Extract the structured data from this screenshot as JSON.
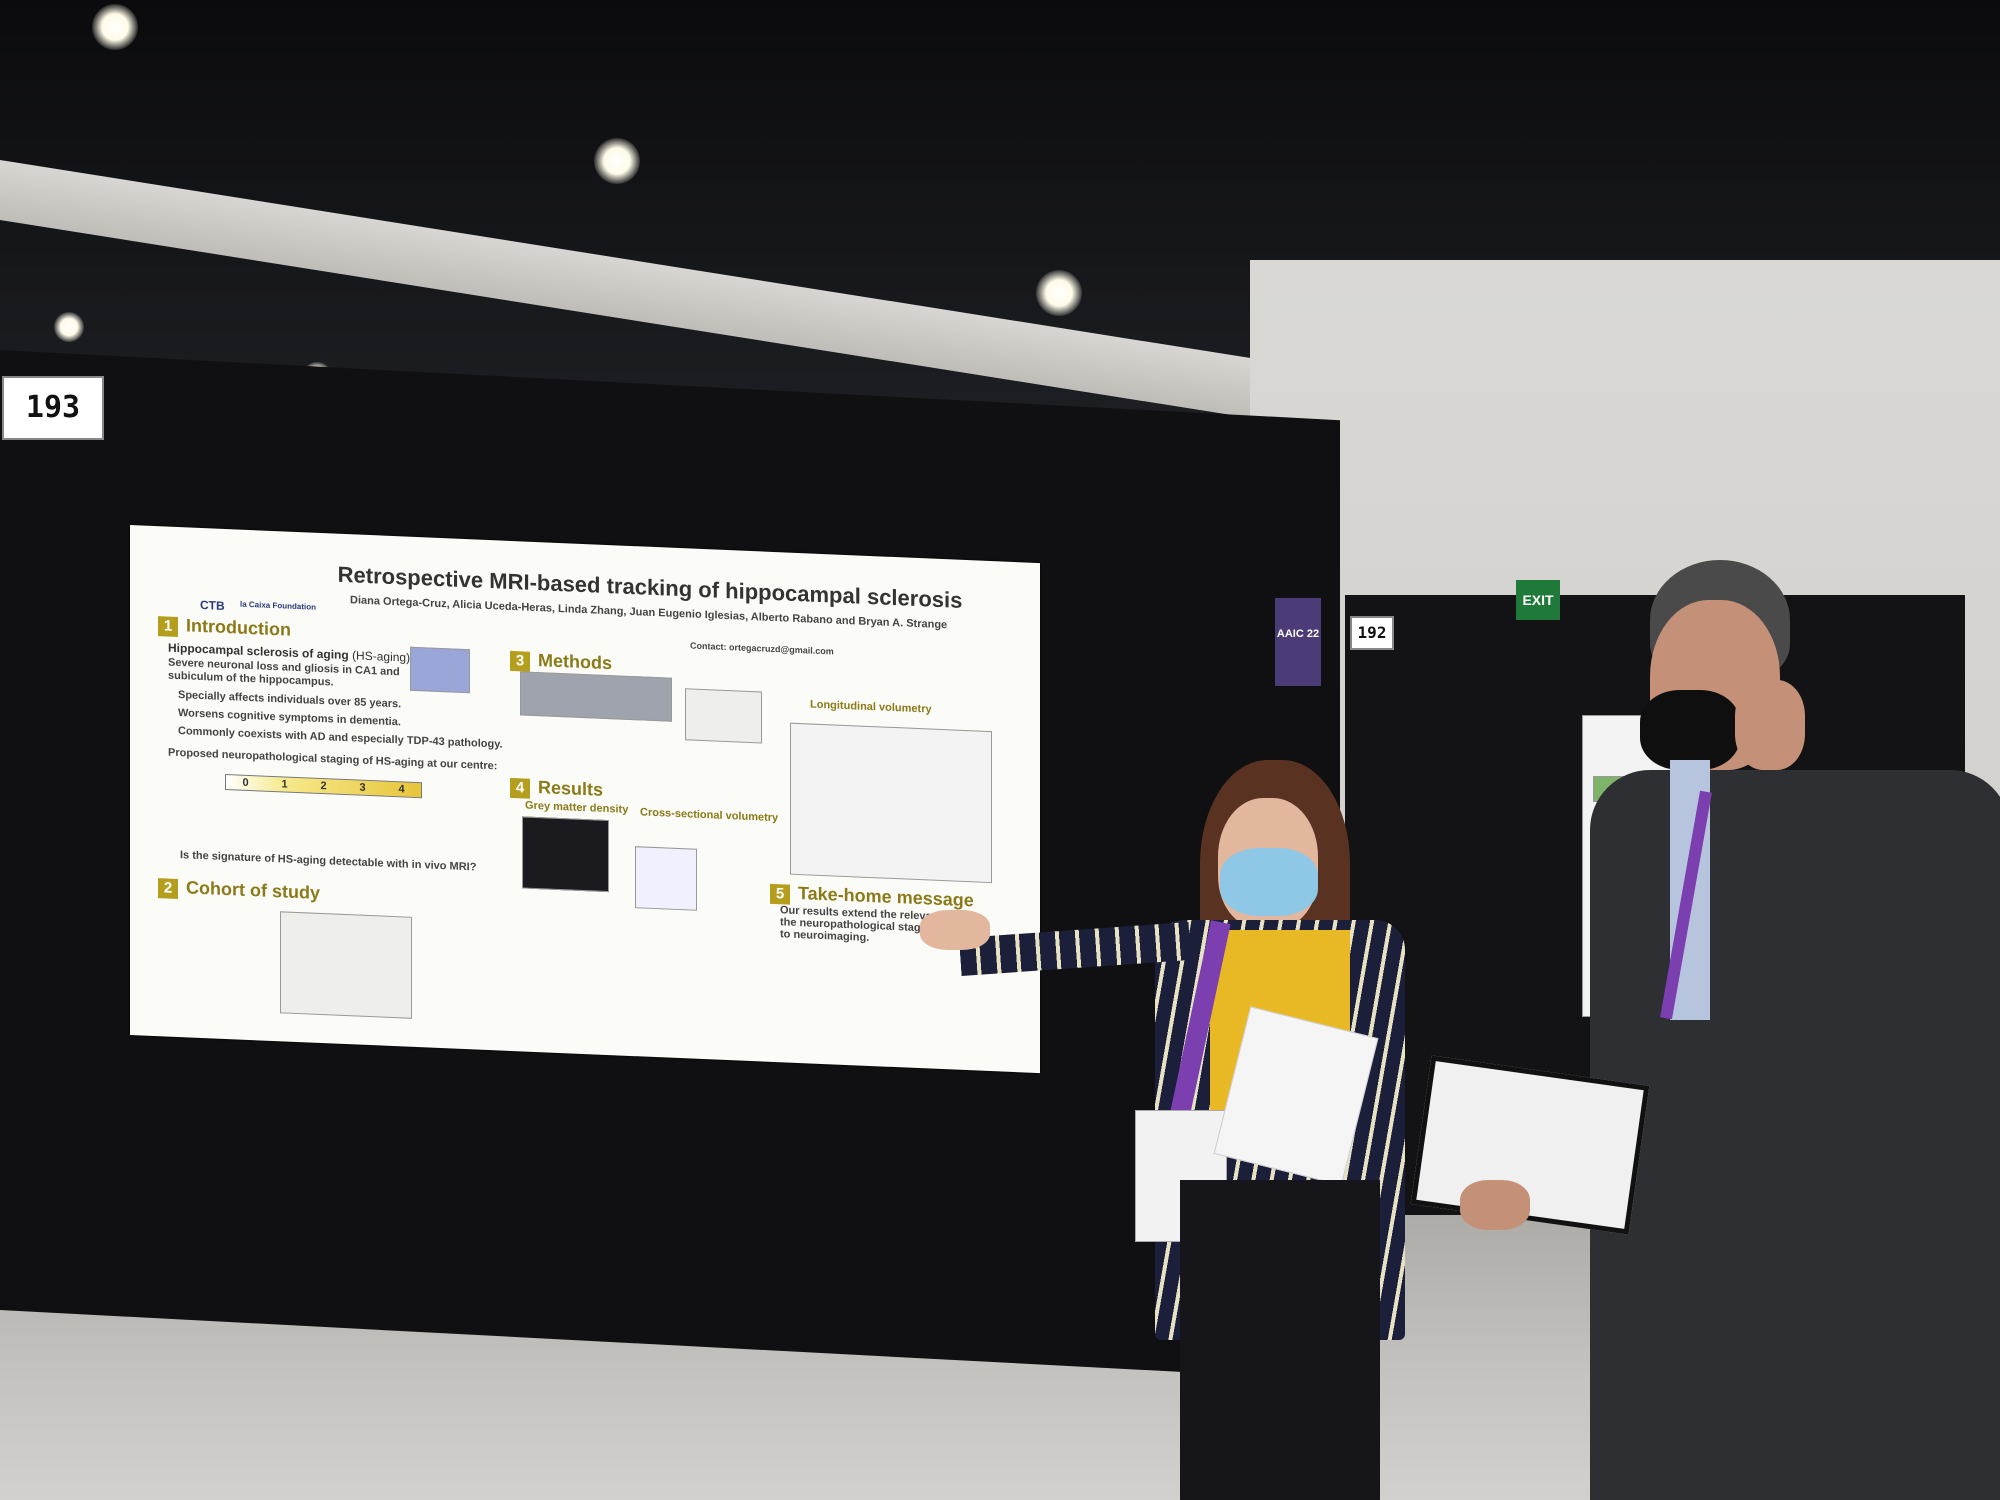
{
  "booth_numbers": {
    "main": "193",
    "right": "192"
  },
  "exit_sign": "EXIT",
  "monitor": {
    "label": "AAIC 22"
  },
  "poster": {
    "title": "Retrospective MRI-based tracking of hippocampal sclerosis",
    "authors": "Diana Ortega-Cruz, Alicia Uceda-Heras, Linda Zhang, Juan Eugenio Iglesias, Alberto Rabano and Bryan A. Strange",
    "logos": {
      "left": "CTB",
      "right": "la Caixa Foundation"
    },
    "contact": "Contact: ortegacruzd@gmail.com",
    "sections": {
      "introduction": {
        "number": "1",
        "title": "Introduction"
      },
      "cohort": {
        "number": "2",
        "title": "Cohort of study"
      },
      "methods": {
        "number": "3",
        "title": "Methods"
      },
      "results": {
        "number": "4",
        "title": "Results"
      },
      "takehome": {
        "number": "5",
        "title": "Take-home message"
      }
    },
    "intro": {
      "subhead": "Hippocampal sclerosis of aging",
      "subhead_suffix": "(HS-aging)",
      "lines": [
        "Severe neuronal loss and gliosis in CA1 and",
        "subiculum of the hippocampus.",
        "Specially affects individuals over 85 years.",
        "Worsens cognitive symptoms in dementia.",
        "Commonly coexists with AD and especially TDP-43 pathology."
      ],
      "staging_line": "Proposed neuropathological staging of HS-aging at our centre:",
      "question": "Is the signature of HS-aging detectable with in vivo MRI?"
    },
    "scale": [
      "0",
      "1",
      "2",
      "3",
      "4"
    ],
    "results": {
      "gm": "Grey matter density",
      "cs": "Cross-sectional volumetry",
      "lv": "Longitudinal volumetry"
    },
    "takehome_text": "Our results extend the relevance of the neuropathological staging of HS to neuroimaging."
  },
  "palette": {
    "board": "#101012",
    "poster_bg": "#fbfbf8",
    "section_gold": "#b59e1e",
    "top_yellow": "#e8b825",
    "lanyard_purple": "#7b3fb0",
    "mask_blue": "#8fc7e6"
  }
}
